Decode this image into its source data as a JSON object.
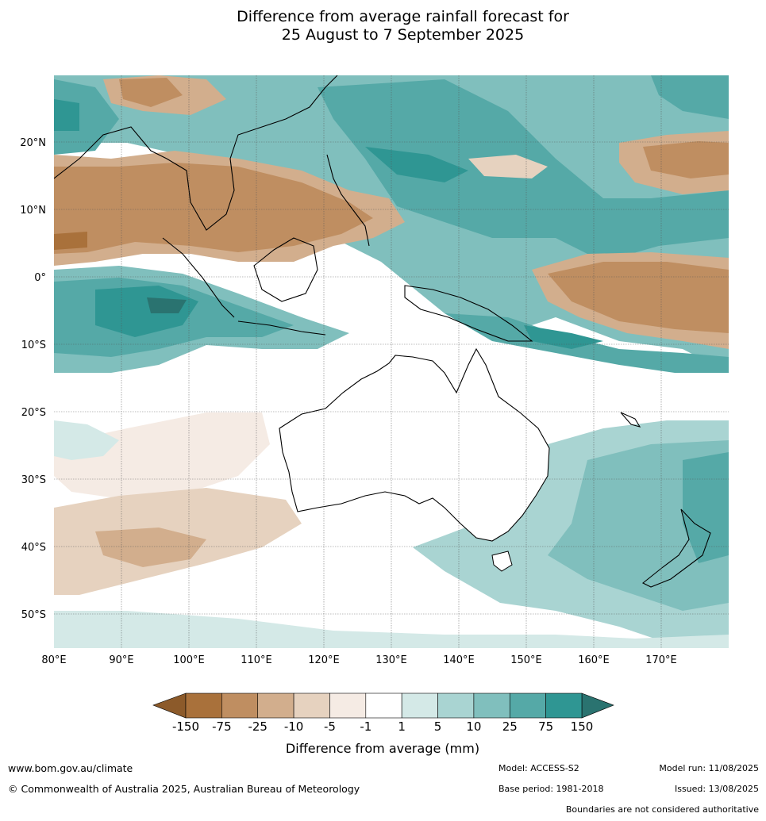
{
  "title": {
    "line1": "Difference from average rainfall forecast for",
    "line2": "25 August to 7 September 2025"
  },
  "map": {
    "lon_labels": [
      "80°E",
      "90°E",
      "100°E",
      "110°E",
      "120°E",
      "130°E",
      "140°E",
      "150°E",
      "160°E",
      "170°E"
    ],
    "lat_labels": [
      "20°N",
      "10°N",
      "0°",
      "10°S",
      "20°S",
      "30°S",
      "40°S",
      "50°S"
    ]
  },
  "colorbar": {
    "tick_labels": [
      "-150",
      "-75",
      "-25",
      "-10",
      "-5",
      "-1",
      "1",
      "5",
      "10",
      "25",
      "75",
      "150"
    ],
    "title": "Difference from average (mm)",
    "colors": {
      "below_min": "#8c5a2a",
      "bins": [
        "#a9713b",
        "#bf8e61",
        "#d2ae8d",
        "#e6d2bf",
        "#f5ebe4",
        "#ffffff",
        "#d4e9e7",
        "#a9d4d2",
        "#80bfbd",
        "#55a9a7",
        "#2f9693"
      ],
      "above_max": "#2a7370"
    }
  },
  "footer": {
    "website": "www.bom.gov.au/climate",
    "copyright": "© Commonwealth of Australia 2025, Australian Bureau of Meteorology",
    "model": "Model: ACCESS-S2",
    "model_run": "Model run: 11/08/2025",
    "base_period": "Base period: 1981-2018",
    "issued": "Issued: 13/08/2025",
    "boundaries": "Boundaries are not considered authoritative"
  }
}
